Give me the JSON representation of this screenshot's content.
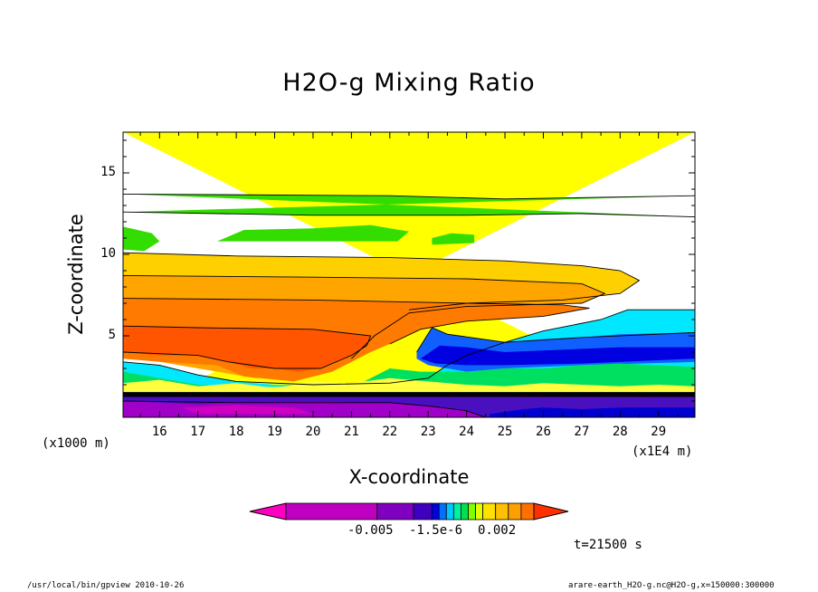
{
  "chart_data": {
    "type": "heatmap",
    "title": "H2O-g Mixing Ratio",
    "xlabel": "X-coordinate",
    "ylabel": "Z-coordinate",
    "x_unit_left": "(x1000 m)",
    "x_unit_right": "(x1E4 m)",
    "x_ticks": [
      "16",
      "17",
      "18",
      "19",
      "20",
      "21",
      "22",
      "23",
      "24",
      "25",
      "26",
      "27",
      "28",
      "29"
    ],
    "y_ticks": [
      "5",
      "10",
      "15"
    ],
    "xlim": [
      15.05,
      29.95
    ],
    "ylim": [
      0,
      17.5
    ],
    "colorbar_labels": [
      "-0.005",
      "-1.5e-6",
      "0.002"
    ],
    "colorbar_colors": [
      "#ff00c0",
      "#c000c0",
      "#8000c0",
      "#4000c0",
      "#0000e6",
      "#0070ff",
      "#00c8ff",
      "#00f0a0",
      "#00e050",
      "#80ff00",
      "#e0ff00",
      "#ffe000",
      "#ffc000",
      "#ffa000",
      "#ff7000",
      "#ff3000"
    ],
    "time_label": "t=21500 s",
    "footer_left": "/usr/local/bin/gpview  2010-10-26",
    "footer_right": "arare-earth_H2O-g.nc@H2O-g,x=150000:300000",
    "layers": [
      {
        "color": "#ffff00",
        "top": [
          [
            15.05,
            17.5
          ],
          [
            29.95,
            17.5
          ]
        ],
        "bottom": [
          [
            15.05,
            0
          ],
          [
            29.95,
            0
          ]
        ]
      },
      {
        "color": "#33dd00",
        "top": [
          [
            15.05,
            13.7
          ],
          [
            22,
            13.6
          ],
          [
            25,
            13.4
          ],
          [
            29.95,
            13.6
          ]
        ],
        "bottom": [
          [
            15.05,
            12.6
          ],
          [
            20,
            12.4
          ],
          [
            24,
            12.4
          ],
          [
            27,
            12.5
          ],
          [
            29.95,
            12.3
          ]
        ]
      },
      {
        "color": "#33dd00",
        "top": [
          [
            15.05,
            11.7
          ],
          [
            15.8,
            11.3
          ],
          [
            16,
            10.8
          ],
          [
            15.6,
            10.2
          ],
          [
            15.05,
            10.3
          ]
        ],
        "bottom": [
          [
            15.05,
            10.3
          ]
        ]
      },
      {
        "color": "#33dd00",
        "top": [
          [
            17.5,
            10.8
          ],
          [
            18.2,
            11.5
          ],
          [
            20,
            11.6
          ],
          [
            21.5,
            11.8
          ],
          [
            22.5,
            11.4
          ],
          [
            22.2,
            10.8
          ]
        ],
        "bottom": [
          [
            20,
            10.8
          ],
          [
            17.5,
            10.8
          ]
        ]
      },
      {
        "color": "#33dd00",
        "top": [
          [
            23.1,
            11.0
          ],
          [
            23.6,
            11.3
          ],
          [
            24.2,
            11.2
          ],
          [
            24.2,
            10.7
          ],
          [
            23.2,
            10.6
          ]
        ],
        "bottom": [
          [
            23.1,
            10.6
          ]
        ]
      },
      {
        "color": "#ffd000",
        "top": [
          [
            15.05,
            10.1
          ],
          [
            18,
            9.9
          ],
          [
            22,
            9.8
          ],
          [
            25,
            9.6
          ],
          [
            27,
            9.3
          ],
          [
            28,
            9.0
          ],
          [
            28.5,
            8.4
          ]
        ],
        "bottom": [
          [
            28.0,
            7.6
          ],
          [
            26.5,
            7.2
          ],
          [
            24,
            7.0
          ],
          [
            22.5,
            6.6
          ],
          [
            21.5,
            4.8
          ],
          [
            20,
            4.2
          ],
          [
            17,
            4.2
          ],
          [
            15.05,
            4.8
          ]
        ]
      },
      {
        "color": "#ffa500",
        "top": [
          [
            15.05,
            8.7
          ],
          [
            20,
            8.6
          ],
          [
            24,
            8.5
          ],
          [
            27,
            8.2
          ],
          [
            27.6,
            7.6
          ]
        ],
        "bottom": [
          [
            27.0,
            7.0
          ],
          [
            24,
            6.8
          ],
          [
            22.5,
            6.4
          ],
          [
            21.6,
            5.0
          ],
          [
            21,
            3.6
          ],
          [
            20,
            2.6
          ],
          [
            18.5,
            2.4
          ],
          [
            17,
            3.0
          ],
          [
            15.05,
            3.8
          ]
        ]
      },
      {
        "color": "#ff7a00",
        "top": [
          [
            15.05,
            7.3
          ],
          [
            20,
            7.2
          ],
          [
            24,
            7.0
          ],
          [
            26.5,
            6.9
          ],
          [
            27.2,
            6.7
          ]
        ],
        "bottom": [
          [
            26,
            6.2
          ],
          [
            24,
            5.9
          ],
          [
            22.8,
            5.4
          ],
          [
            22.0,
            4.5
          ],
          [
            21.5,
            4.0
          ],
          [
            20.5,
            2.8
          ],
          [
            19.5,
            2.2
          ],
          [
            18.2,
            2.5
          ],
          [
            17.5,
            3.2
          ],
          [
            16,
            3.4
          ],
          [
            15.05,
            3.6
          ]
        ]
      },
      {
        "color": "#ff5500",
        "top": [
          [
            15.05,
            5.6
          ],
          [
            17,
            5.5
          ],
          [
            20,
            5.4
          ],
          [
            21.5,
            5.0
          ],
          [
            21.4,
            4.4
          ]
        ],
        "bottom": [
          [
            21,
            3.8
          ],
          [
            20.6,
            3.4
          ],
          [
            20.2,
            3.0
          ],
          [
            19.6,
            2.8
          ],
          [
            19.0,
            3.0
          ],
          [
            18.4,
            3.0
          ],
          [
            17.8,
            3.4
          ],
          [
            17.0,
            3.8
          ],
          [
            16,
            3.8
          ],
          [
            15.05,
            4.0
          ]
        ]
      },
      {
        "color": "#00e7ff",
        "top": [
          [
            15.05,
            3.4
          ],
          [
            16,
            3.2
          ],
          [
            17,
            2.6
          ],
          [
            18,
            2.2
          ],
          [
            19,
            2.0
          ],
          [
            20,
            2.0
          ],
          [
            22,
            2.1
          ],
          [
            23,
            2.4
          ],
          [
            23.5,
            3.2
          ],
          [
            24,
            3.8
          ],
          [
            25,
            4.6
          ],
          [
            26,
            5.3
          ],
          [
            27.5,
            6.0
          ],
          [
            28.2,
            6.6
          ],
          [
            29.95,
            6.6
          ]
        ],
        "bottom": [
          [
            29.95,
            2.9
          ],
          [
            28,
            2.7
          ],
          [
            25,
            2.8
          ],
          [
            23,
            2.4
          ],
          [
            21,
            2.0
          ],
          [
            18,
            1.8
          ],
          [
            15.05,
            1.8
          ]
        ]
      },
      {
        "color": "#1060ff",
        "top": [
          [
            22.7,
            4.0
          ],
          [
            23.1,
            5.5
          ],
          [
            23.5,
            5.1
          ],
          [
            24,
            4.9
          ],
          [
            25,
            4.6
          ],
          [
            26,
            4.8
          ],
          [
            27,
            4.9
          ],
          [
            28,
            5.1
          ],
          [
            29.95,
            5.2
          ]
        ],
        "bottom": [
          [
            29.95,
            3.4
          ],
          [
            27,
            3.2
          ],
          [
            25,
            3.0
          ],
          [
            24.0,
            2.8
          ],
          [
            23,
            3.2
          ],
          [
            22.7,
            3.6
          ]
        ]
      },
      {
        "color": "#0000e0",
        "top": [
          [
            22.8,
            3.6
          ],
          [
            23.3,
            4.4
          ],
          [
            24,
            4.3
          ],
          [
            25,
            4.0
          ],
          [
            26,
            4.1
          ],
          [
            27,
            4.2
          ],
          [
            28,
            4.3
          ],
          [
            29.95,
            4.3
          ]
        ],
        "bottom": [
          [
            29.95,
            3.6
          ],
          [
            27,
            3.3
          ],
          [
            25,
            3.2
          ],
          [
            24,
            3.2
          ],
          [
            23.2,
            3.3
          ]
        ]
      },
      {
        "color": "#00e060",
        "top": [
          [
            22,
            3.0
          ],
          [
            22.8,
            2.8
          ],
          [
            24,
            2.8
          ],
          [
            25,
            3.0
          ],
          [
            26,
            3.0
          ],
          [
            27,
            3.2
          ],
          [
            28,
            3.3
          ],
          [
            29.95,
            3.1
          ]
        ],
        "bottom": [
          [
            29.95,
            1.6
          ],
          [
            15.05,
            1.6
          ],
          [
            15.05,
            2.8
          ],
          [
            17,
            2.0
          ],
          [
            19,
            1.8
          ],
          [
            21,
            1.8
          ]
        ]
      },
      {
        "color": "#ffff40",
        "top": [
          [
            15.05,
            2.1
          ],
          [
            16,
            2.3
          ],
          [
            17,
            1.9
          ],
          [
            18,
            2.1
          ],
          [
            19,
            1.8
          ],
          [
            20,
            2.2
          ],
          [
            21,
            2.1
          ],
          [
            22,
            2.4
          ],
          [
            23,
            2.2
          ],
          [
            24,
            2.0
          ],
          [
            25,
            1.9
          ],
          [
            26,
            2.1
          ],
          [
            27,
            2.0
          ],
          [
            28,
            1.9
          ],
          [
            29,
            2.0
          ],
          [
            29.95,
            1.9
          ]
        ],
        "bottom": [
          [
            29.95,
            1.55
          ],
          [
            15.05,
            1.55
          ]
        ]
      },
      {
        "color": "#000000",
        "top": [
          [
            15.05,
            1.55
          ],
          [
            29.95,
            1.55
          ]
        ],
        "bottom": [
          [
            29.95,
            1.25
          ],
          [
            15.05,
            1.25
          ]
        ]
      },
      {
        "color": "#4a10c0",
        "top": [
          [
            15.05,
            1.25
          ],
          [
            29.95,
            1.25
          ]
        ],
        "bottom": [
          [
            29.95,
            0
          ],
          [
            15.05,
            0
          ]
        ]
      },
      {
        "color": "#a000c8",
        "top": [
          [
            15.05,
            1.0
          ],
          [
            16,
            0.9
          ],
          [
            17,
            0.8
          ],
          [
            18,
            0.9
          ],
          [
            20,
            0.95
          ],
          [
            22,
            0.9
          ],
          [
            23,
            0.7
          ],
          [
            24,
            0.4
          ]
        ],
        "bottom": [
          [
            24.5,
            0
          ],
          [
            15.05,
            0
          ]
        ]
      },
      {
        "color": "#d000c0",
        "top": [
          [
            16.6,
            0.6
          ],
          [
            18,
            0.75
          ],
          [
            19.5,
            0.6
          ]
        ],
        "bottom": [
          [
            20,
            0.2
          ],
          [
            17,
            0.2
          ]
        ]
      },
      {
        "color": "#0000d0",
        "top": [
          [
            24.6,
            0.2
          ],
          [
            25.5,
            0.5
          ],
          [
            26,
            0.6
          ],
          [
            27,
            0.5
          ],
          [
            28,
            0.6
          ],
          [
            29.95,
            0.6
          ]
        ],
        "bottom": [
          [
            29.95,
            0
          ],
          [
            24.6,
            0
          ]
        ]
      }
    ],
    "contours": [
      [
        [
          15.05,
          13.7
        ],
        [
          22,
          13.6
        ],
        [
          25,
          13.4
        ],
        [
          29.95,
          13.6
        ]
      ],
      [
        [
          15.05,
          12.6
        ],
        [
          20,
          12.4
        ],
        [
          24,
          12.4
        ],
        [
          27,
          12.5
        ],
        [
          29.95,
          12.3
        ]
      ],
      [
        [
          15.05,
          10.1
        ],
        [
          18,
          9.9
        ],
        [
          22,
          9.8
        ],
        [
          25,
          9.6
        ],
        [
          27,
          9.3
        ],
        [
          28,
          9.0
        ],
        [
          28.5,
          8.4
        ],
        [
          28.0,
          7.6
        ],
        [
          26.5,
          7.2
        ],
        [
          24,
          7.0
        ],
        [
          22.5,
          6.6
        ]
      ],
      [
        [
          15.05,
          8.7
        ],
        [
          20,
          8.6
        ],
        [
          24,
          8.5
        ],
        [
          27,
          8.2
        ],
        [
          27.6,
          7.6
        ],
        [
          27.0,
          7.0
        ],
        [
          24,
          6.8
        ],
        [
          22.5,
          6.4
        ],
        [
          21.6,
          5.0
        ],
        [
          21,
          3.6
        ]
      ],
      [
        [
          15.05,
          7.3
        ],
        [
          20,
          7.2
        ],
        [
          24,
          7.0
        ],
        [
          26.5,
          6.9
        ],
        [
          27.2,
          6.7
        ],
        [
          26,
          6.2
        ],
        [
          24,
          5.9
        ],
        [
          22.8,
          5.4
        ],
        [
          22,
          4.5
        ]
      ],
      [
        [
          15.05,
          5.6
        ],
        [
          17,
          5.5
        ],
        [
          20,
          5.4
        ],
        [
          21.5,
          5.0
        ],
        [
          21.4,
          4.4
        ],
        [
          21,
          3.8
        ],
        [
          20.2,
          3.0
        ],
        [
          19.0,
          3.0
        ],
        [
          17.8,
          3.4
        ],
        [
          17,
          3.8
        ],
        [
          15.05,
          4.0
        ]
      ],
      [
        [
          15.05,
          3.4
        ],
        [
          16,
          3.2
        ],
        [
          17,
          2.6
        ],
        [
          18,
          2.2
        ],
        [
          20,
          2.0
        ],
        [
          22,
          2.1
        ],
        [
          23,
          2.4
        ],
        [
          23.5,
          3.2
        ],
        [
          24,
          3.8
        ],
        [
          25,
          4.6
        ],
        [
          26,
          5.3
        ],
        [
          27.5,
          6.0
        ],
        [
          28.2,
          6.6
        ],
        [
          29.95,
          6.6
        ]
      ],
      [
        [
          22.7,
          4.0
        ],
        [
          23.1,
          5.5
        ],
        [
          23.5,
          5.1
        ],
        [
          25,
          4.6
        ],
        [
          27,
          4.9
        ],
        [
          29.95,
          5.2
        ]
      ],
      [
        [
          15.05,
          1.0
        ],
        [
          18,
          0.9
        ],
        [
          22,
          0.9
        ],
        [
          23,
          0.7
        ],
        [
          24,
          0.4
        ],
        [
          24.5,
          0
        ]
      ]
    ]
  }
}
